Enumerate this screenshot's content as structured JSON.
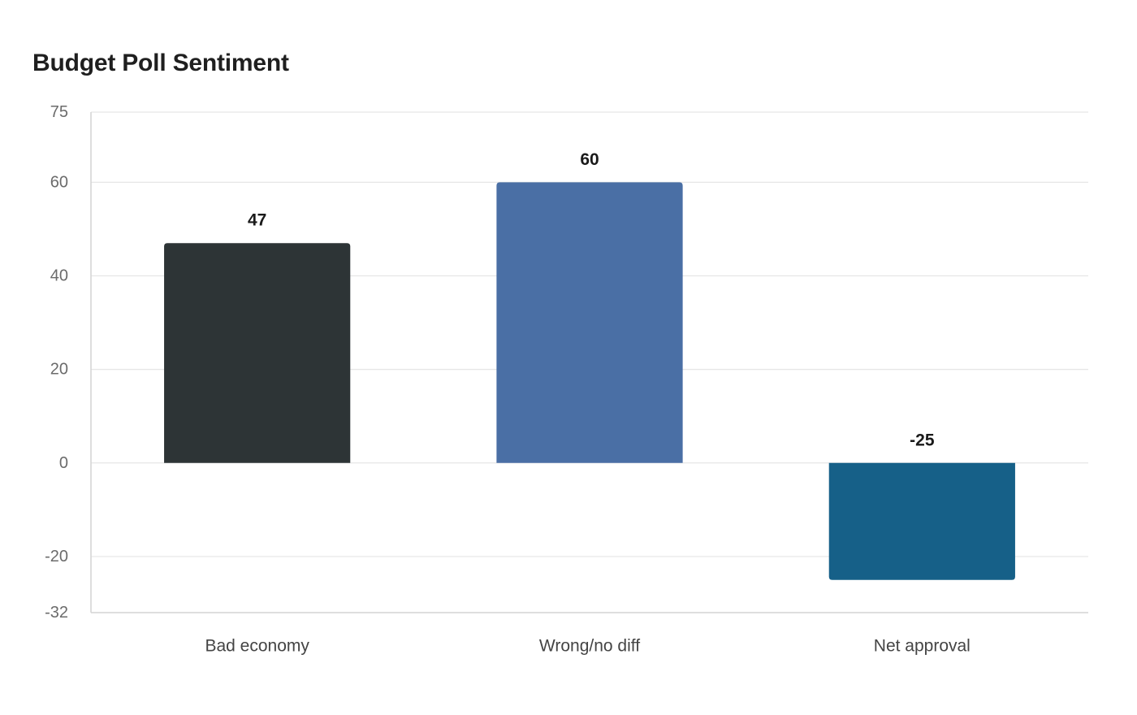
{
  "chart_data": {
    "type": "bar",
    "title": "Budget Poll Sentiment",
    "xlabel": "",
    "ylabel": "",
    "categories": [
      "Bad economy",
      "Wrong/no diff",
      "Net approval"
    ],
    "values": [
      47,
      60,
      -25
    ],
    "colors": [
      "#2d3436",
      "#4a6fa5",
      "#166088"
    ],
    "ylim": [
      -32,
      75
    ],
    "yticks": [
      -32,
      -20,
      0,
      20,
      40,
      60,
      75
    ],
    "grid": true,
    "legend": "none"
  }
}
